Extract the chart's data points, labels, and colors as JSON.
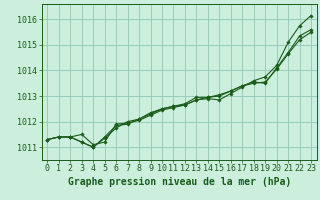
{
  "bg_color": "#cceedd",
  "grid_color": "#99ccbb",
  "line_color": "#1a5c1a",
  "marker_color": "#1a5c1a",
  "xlabel": "Graphe pression niveau de la mer (hPa)",
  "ylim": [
    1010.5,
    1016.6
  ],
  "xlim": [
    -0.5,
    23.5
  ],
  "yticks": [
    1011,
    1012,
    1013,
    1014,
    1015,
    1016
  ],
  "xticks": [
    0,
    1,
    2,
    3,
    4,
    5,
    6,
    7,
    8,
    9,
    10,
    11,
    12,
    13,
    14,
    15,
    16,
    17,
    18,
    19,
    20,
    21,
    22,
    23
  ],
  "series": [
    [
      1011.3,
      1011.4,
      1011.4,
      1011.5,
      1011.1,
      1011.2,
      1011.9,
      1011.95,
      1012.05,
      1012.25,
      1012.45,
      1012.55,
      1012.65,
      1012.85,
      1012.9,
      1012.85,
      1013.1,
      1013.35,
      1013.6,
      1013.75,
      1014.2,
      1015.1,
      1015.75,
      1016.15
    ],
    [
      1011.3,
      1011.4,
      1011.4,
      1011.2,
      1011.0,
      1011.35,
      1011.75,
      1012.0,
      1012.1,
      1012.3,
      1012.5,
      1012.6,
      1012.65,
      1012.85,
      1012.95,
      1013.05,
      1013.2,
      1013.4,
      1013.5,
      1013.55,
      1014.05,
      1014.65,
      1015.2,
      1015.5
    ],
    [
      1011.3,
      1011.4,
      1011.4,
      1011.2,
      1011.0,
      1011.4,
      1011.85,
      1011.9,
      1012.1,
      1012.35,
      1012.5,
      1012.6,
      1012.7,
      1012.95,
      1012.95,
      1013.0,
      1013.2,
      1013.4,
      1013.55,
      1013.5,
      1014.1,
      1014.7,
      1015.35,
      1015.6
    ]
  ],
  "title_color": "#1a5c1a",
  "xlabel_fontsize": 7,
  "tick_fontsize": 6,
  "ylabel_visible": false
}
